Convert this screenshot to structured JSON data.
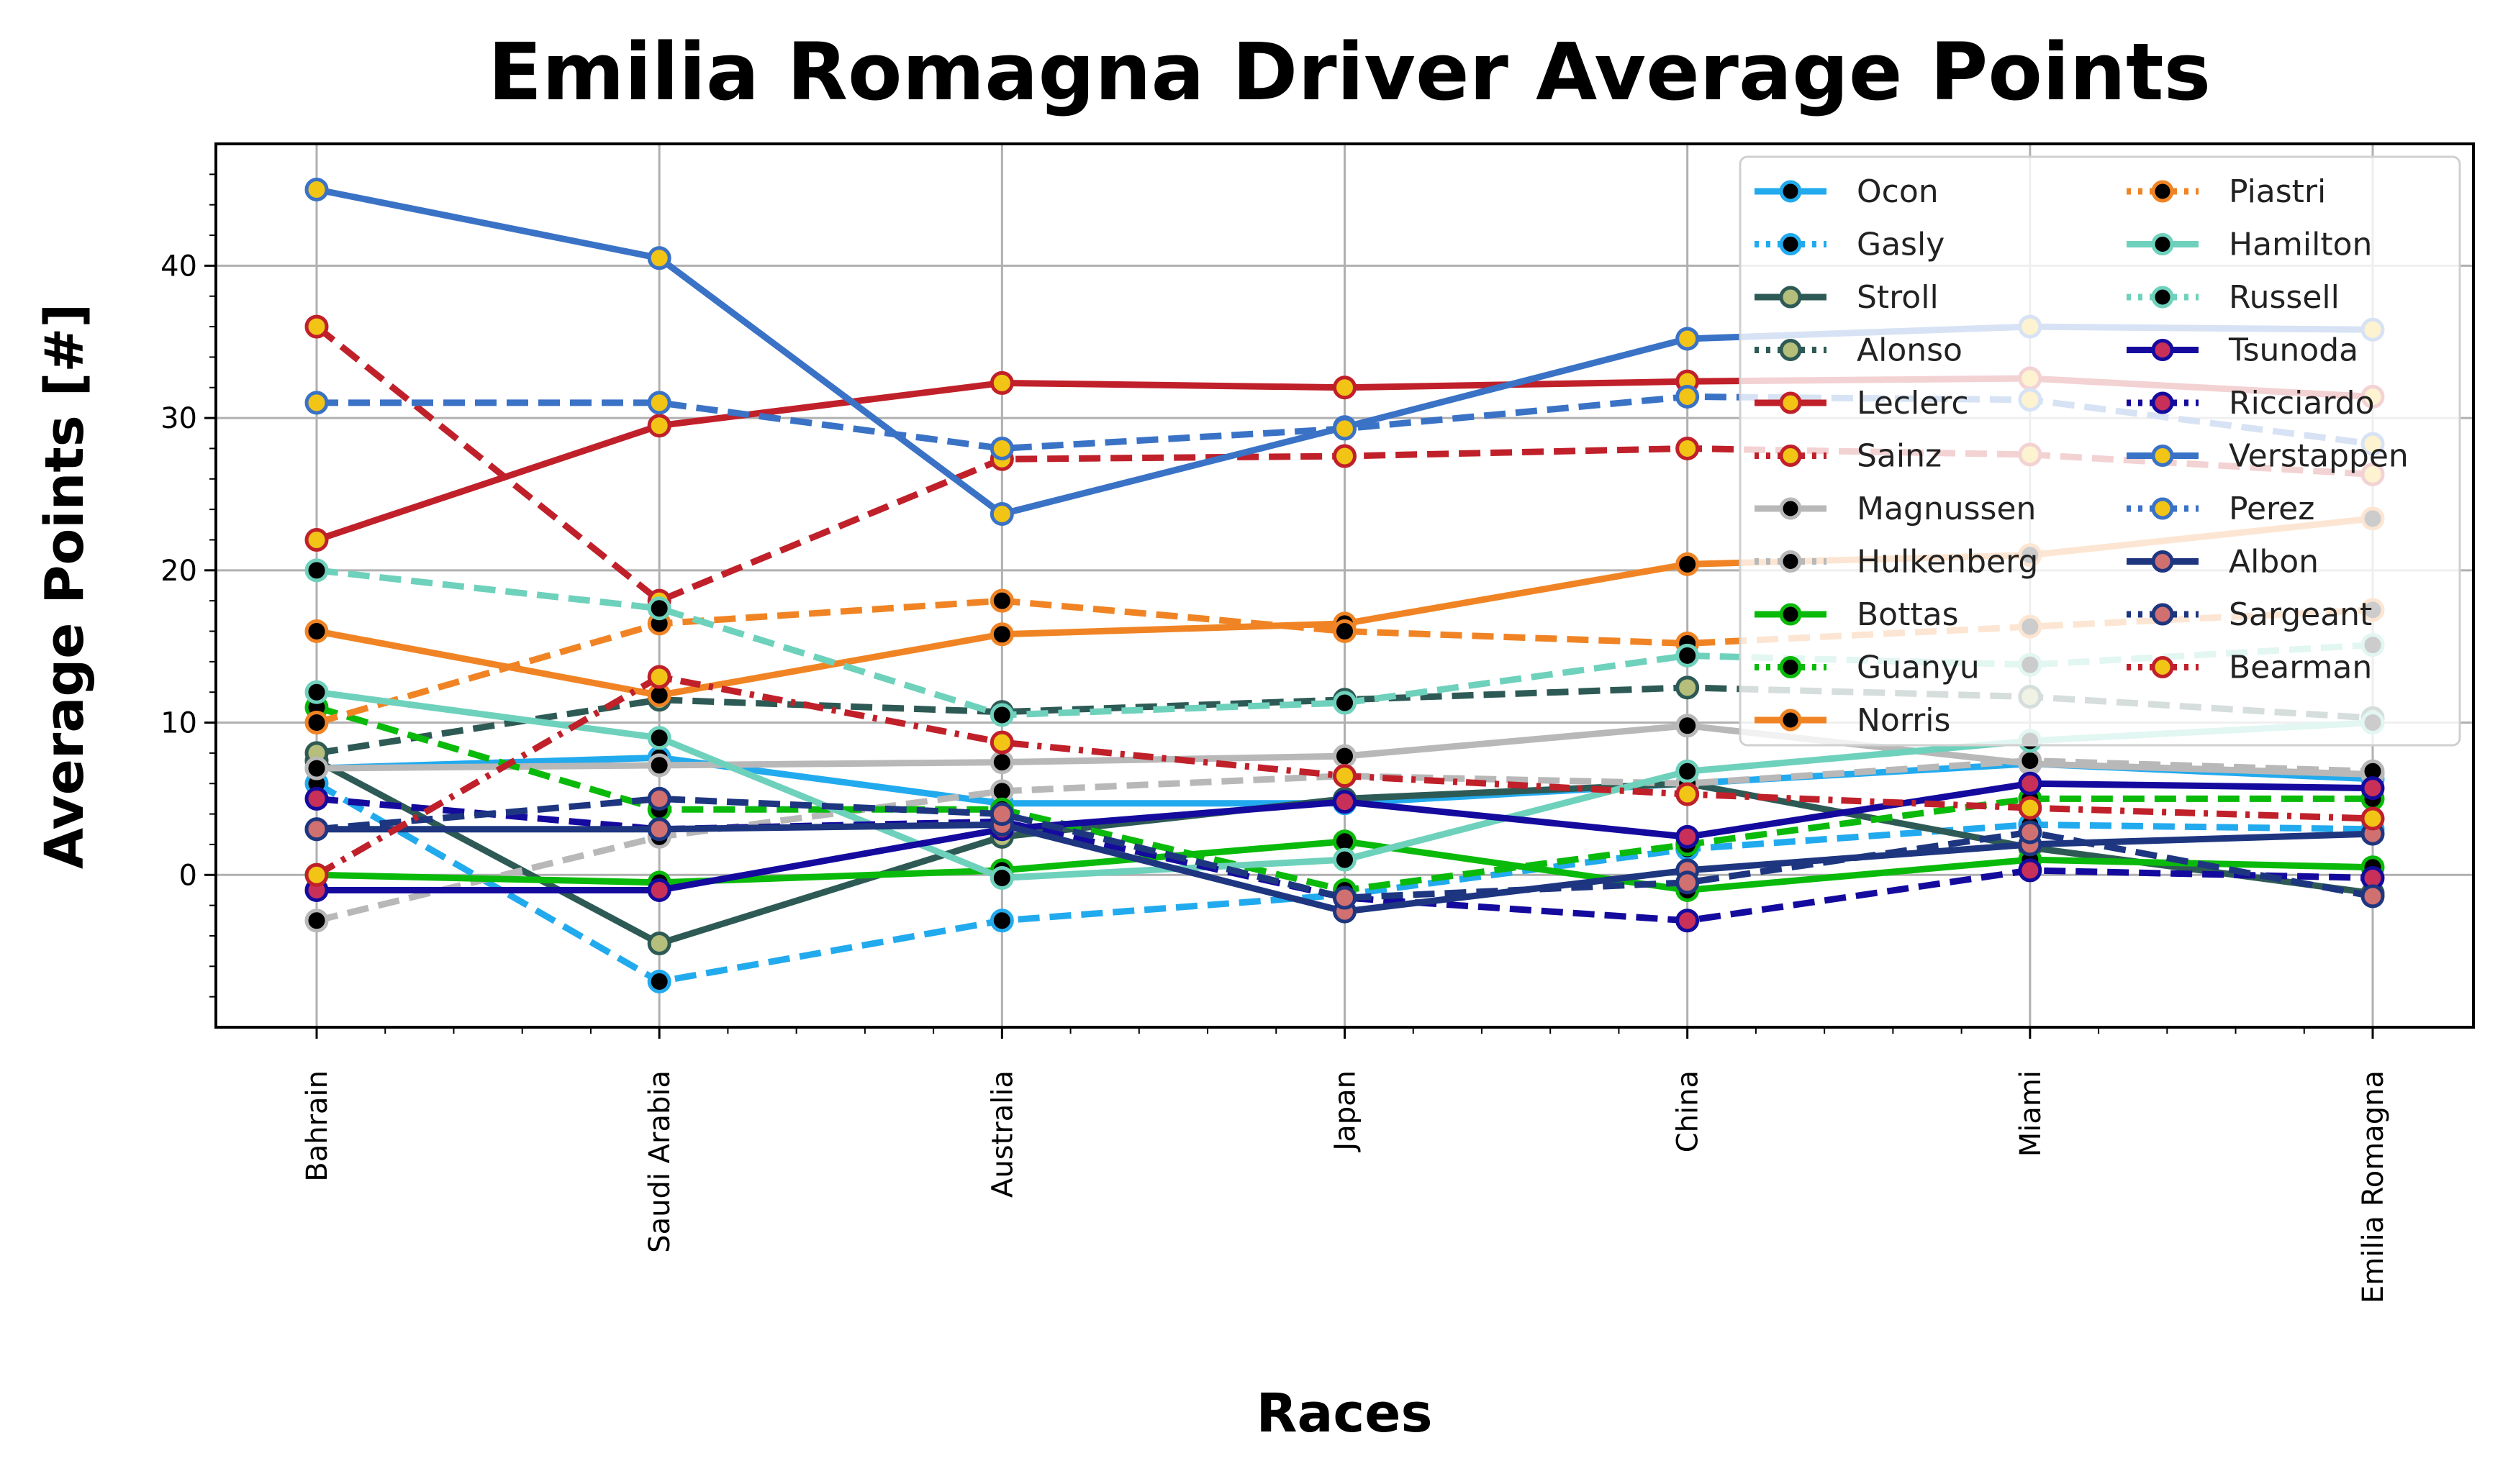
{
  "chart_data": {
    "type": "line",
    "title": "Emilia Romagna Driver Average Points",
    "xlabel": "Races",
    "ylabel": "Average Points [#]",
    "categories": [
      "Bahrain",
      "Saudi Arabia",
      "Australia",
      "Japan",
      "China",
      "Miami",
      "Emilia Romagna"
    ],
    "ylim": [
      -10,
      48
    ],
    "yticks": [
      0,
      10,
      20,
      30,
      40
    ],
    "grid": true,
    "legend_position": "top-right",
    "series": [
      {
        "name": "Ocon",
        "values": [
          7,
          7.7,
          4.7,
          4.7,
          6,
          7.3,
          6.3
        ],
        "color": "#22aaee",
        "dash": "solid",
        "marker_face": "#000000"
      },
      {
        "name": "Gasly",
        "values": [
          6,
          -7,
          -3,
          -1.3,
          1.7,
          3.3,
          3
        ],
        "color": "#22aaee",
        "dash": "dashed",
        "marker_face": "#000000"
      },
      {
        "name": "Stroll",
        "values": [
          7.5,
          -4.5,
          2.5,
          5,
          6,
          1.8,
          -1.2
        ],
        "color": "#2e5a55",
        "dash": "solid",
        "marker_face": "#b5be7a"
      },
      {
        "name": "Alonso",
        "values": [
          8,
          11.5,
          10.7,
          11.5,
          12.3,
          11.7,
          10.3
        ],
        "color": "#2e5a55",
        "dash": "dashed",
        "marker_face": "#b5be7a"
      },
      {
        "name": "Leclerc",
        "values": [
          22,
          29.5,
          32.3,
          32,
          32.4,
          32.6,
          31.4
        ],
        "color": "#c0202a",
        "dash": "solid",
        "marker_face": "#f2c416"
      },
      {
        "name": "Sainz",
        "values": [
          36,
          18,
          27.3,
          27.5,
          28,
          27.6,
          26.3
        ],
        "color": "#c0202a",
        "dash": "dashed",
        "marker_face": "#f2c416"
      },
      {
        "name": "Magnussen",
        "values": [
          7,
          7.2,
          7.4,
          7.8,
          9.8,
          7.3,
          6.6
        ],
        "color": "#b8b8b8",
        "dash": "solid",
        "marker_face": "#000000"
      },
      {
        "name": "Hulkenberg",
        "values": [
          -3,
          2.5,
          5.5,
          6.5,
          6,
          7.5,
          6.8
        ],
        "color": "#b8b8b8",
        "dash": "dashed",
        "marker_face": "#000000"
      },
      {
        "name": "Bottas",
        "values": [
          0,
          -0.5,
          0.3,
          2.2,
          -1,
          1,
          0.5
        ],
        "color": "#0aba0a",
        "dash": "solid",
        "marker_face": "#000000"
      },
      {
        "name": "Guanyu",
        "values": [
          11,
          4.3,
          4.3,
          -1,
          2,
          5,
          5
        ],
        "color": "#0aba0a",
        "dash": "dashed",
        "marker_face": "#000000"
      },
      {
        "name": "Norris",
        "values": [
          16,
          11.8,
          15.8,
          16.5,
          20.4,
          21,
          23.4
        ],
        "color": "#f08424",
        "dash": "solid",
        "marker_face": "#000000"
      },
      {
        "name": "Piastri",
        "values": [
          10,
          16.5,
          18,
          16,
          15.2,
          16.3,
          17.4
        ],
        "color": "#f08424",
        "dash": "dashed",
        "marker_face": "#000000"
      },
      {
        "name": "Hamilton",
        "values": [
          12,
          9,
          -0.2,
          1,
          6.8,
          8.8,
          10
        ],
        "color": "#6ed1bc",
        "dash": "solid",
        "marker_face": "#000000"
      },
      {
        "name": "Russell",
        "values": [
          20,
          17.5,
          10.5,
          11.3,
          14.4,
          13.8,
          15.1
        ],
        "color": "#6ed1bc",
        "dash": "dashed",
        "marker_face": "#000000"
      },
      {
        "name": "Tsunoda",
        "values": [
          -1,
          -1,
          3,
          4.8,
          2.5,
          6,
          5.7
        ],
        "color": "#140a9e",
        "dash": "solid",
        "marker_face": "#c8305a"
      },
      {
        "name": "Ricciardo",
        "values": [
          5,
          3,
          3.5,
          -1.5,
          -3,
          0.3,
          -0.2
        ],
        "color": "#140a9e",
        "dash": "dashed",
        "marker_face": "#c8305a"
      },
      {
        "name": "Verstappen",
        "values": [
          45,
          40.5,
          23.7,
          29.4,
          35.2,
          36,
          35.8
        ],
        "color": "#3a72c6",
        "dash": "solid",
        "marker_face": "#f2c416"
      },
      {
        "name": "Perez",
        "values": [
          31,
          31,
          28,
          29.3,
          31.4,
          31.2,
          28.3
        ],
        "color": "#3a72c6",
        "dash": "dashed",
        "marker_face": "#f2c416"
      },
      {
        "name": "Albon",
        "values": [
          3,
          3,
          3.3,
          -2.4,
          0.3,
          2,
          2.7
        ],
        "color": "#1e3680",
        "dash": "solid",
        "marker_face": "#d07070"
      },
      {
        "name": "Sargeant",
        "values": [
          3,
          5,
          4,
          -1.5,
          -0.5,
          2.8,
          -1.4
        ],
        "color": "#1e3680",
        "dash": "dashed",
        "marker_face": "#d07070"
      },
      {
        "name": "Bearman",
        "values": [
          0,
          13,
          8.7,
          6.5,
          5.3,
          4.4,
          3.7
        ],
        "color": "#c0202a",
        "dash": "dashdot",
        "marker_face": "#f2c416"
      }
    ]
  }
}
